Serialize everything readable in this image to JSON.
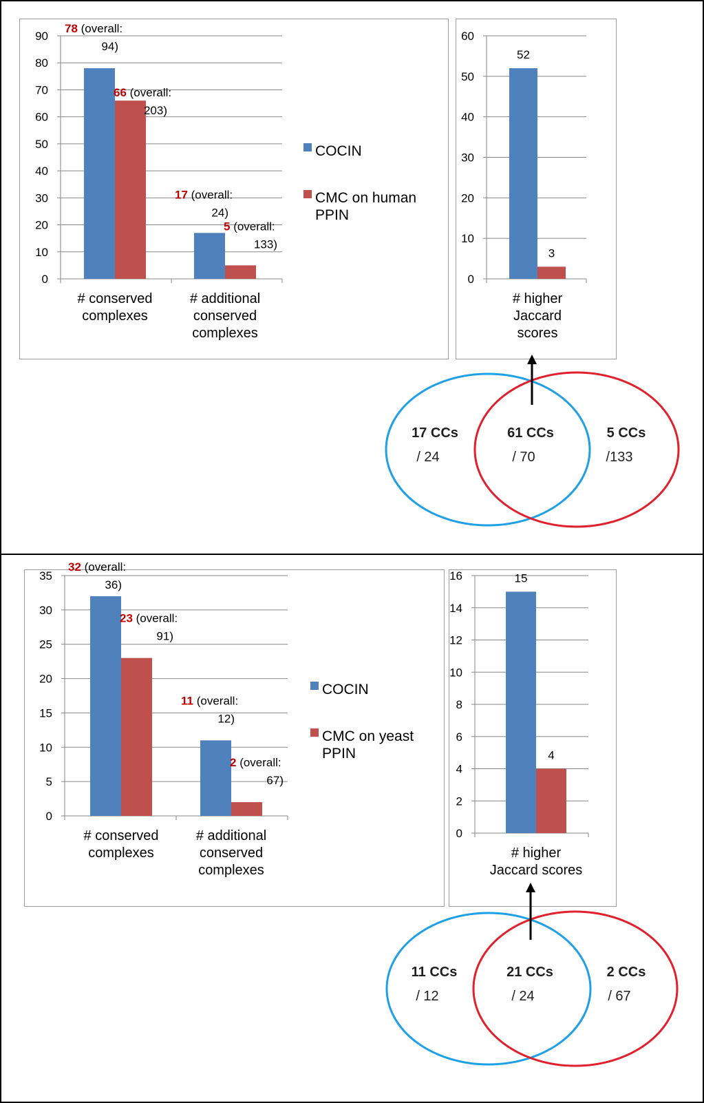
{
  "panels": [
    {
      "chart_data": [
        {
          "type": "bar",
          "categories": [
            "# conserved complexes",
            "# additional conserved complexes"
          ],
          "category_lines": [
            [
              "# conserved",
              "complexes"
            ],
            [
              "# additional",
              "conserved",
              "complexes"
            ]
          ],
          "series": [
            {
              "name": "COCIN",
              "values": [
                78,
                17
              ],
              "overall": [
                94,
                24
              ]
            },
            {
              "name": "CMC on human PPIN",
              "values": [
                66,
                5
              ],
              "overall": [
                203,
                133
              ]
            }
          ],
          "ylim": [
            0,
            90
          ],
          "yticks": [
            0,
            10,
            20,
            30,
            40,
            50,
            60,
            70,
            80,
            90
          ],
          "legend": [
            [
              "COCIN"
            ],
            [
              "CMC on human",
              "PPIN"
            ]
          ],
          "grid": true
        },
        {
          "type": "bar",
          "categories": [
            "# higher Jaccard scores"
          ],
          "category_lines": [
            [
              "# higher",
              "Jaccard",
              "scores"
            ]
          ],
          "series": [
            {
              "name": "COCIN",
              "values": [
                52
              ]
            },
            {
              "name": "CMC on human PPIN",
              "values": [
                3
              ]
            }
          ],
          "ylim": [
            0,
            60
          ],
          "yticks": [
            0,
            10,
            20,
            30,
            40,
            50,
            60
          ],
          "grid": true
        }
      ],
      "venn": {
        "left": {
          "bold": "17 CCs",
          "sub": "/ 24"
        },
        "middle": {
          "bold": "61 CCs",
          "sub": "/ 70"
        },
        "right": {
          "bold": "5 CCs",
          "sub": "/133"
        }
      }
    },
    {
      "chart_data": [
        {
          "type": "bar",
          "categories": [
            "# conserved complexes",
            "# additional conserved complexes"
          ],
          "category_lines": [
            [
              "# conserved",
              "complexes"
            ],
            [
              "# additional",
              "conserved",
              "complexes"
            ]
          ],
          "series": [
            {
              "name": "COCIN",
              "values": [
                32,
                11
              ],
              "overall": [
                36,
                12
              ]
            },
            {
              "name": "CMC on yeast PPIN",
              "values": [
                23,
                2
              ],
              "overall": [
                91,
                67
              ]
            }
          ],
          "ylim": [
            0,
            35
          ],
          "yticks": [
            0,
            5,
            10,
            15,
            20,
            25,
            30,
            35
          ],
          "legend": [
            [
              "COCIN"
            ],
            [
              "CMC on yeast",
              "PPIN"
            ]
          ],
          "grid": true
        },
        {
          "type": "bar",
          "categories": [
            "# higher Jaccard scores"
          ],
          "category_lines": [
            [
              "# higher",
              "Jaccard scores"
            ]
          ],
          "series": [
            {
              "name": "COCIN",
              "values": [
                15
              ]
            },
            {
              "name": "CMC on yeast PPIN",
              "values": [
                4
              ]
            }
          ],
          "ylim": [
            0,
            16
          ],
          "yticks": [
            0,
            2,
            4,
            6,
            8,
            10,
            12,
            14,
            16
          ],
          "grid": true
        }
      ],
      "venn": {
        "left": {
          "bold": "11 CCs",
          "sub": "/ 12"
        },
        "middle": {
          "bold": "21 CCs",
          "sub": "/ 24"
        },
        "right": {
          "bold": "2 CCs",
          "sub": "/ 67"
        }
      }
    }
  ],
  "overall_prefix": "(overall:",
  "colors": {
    "blue": "#4f81bd",
    "red": "#c0504d",
    "grid": "#868686",
    "venn_blue": "#1ea0e6",
    "venn_red": "#e0202c",
    "label_red": "#c00000"
  }
}
